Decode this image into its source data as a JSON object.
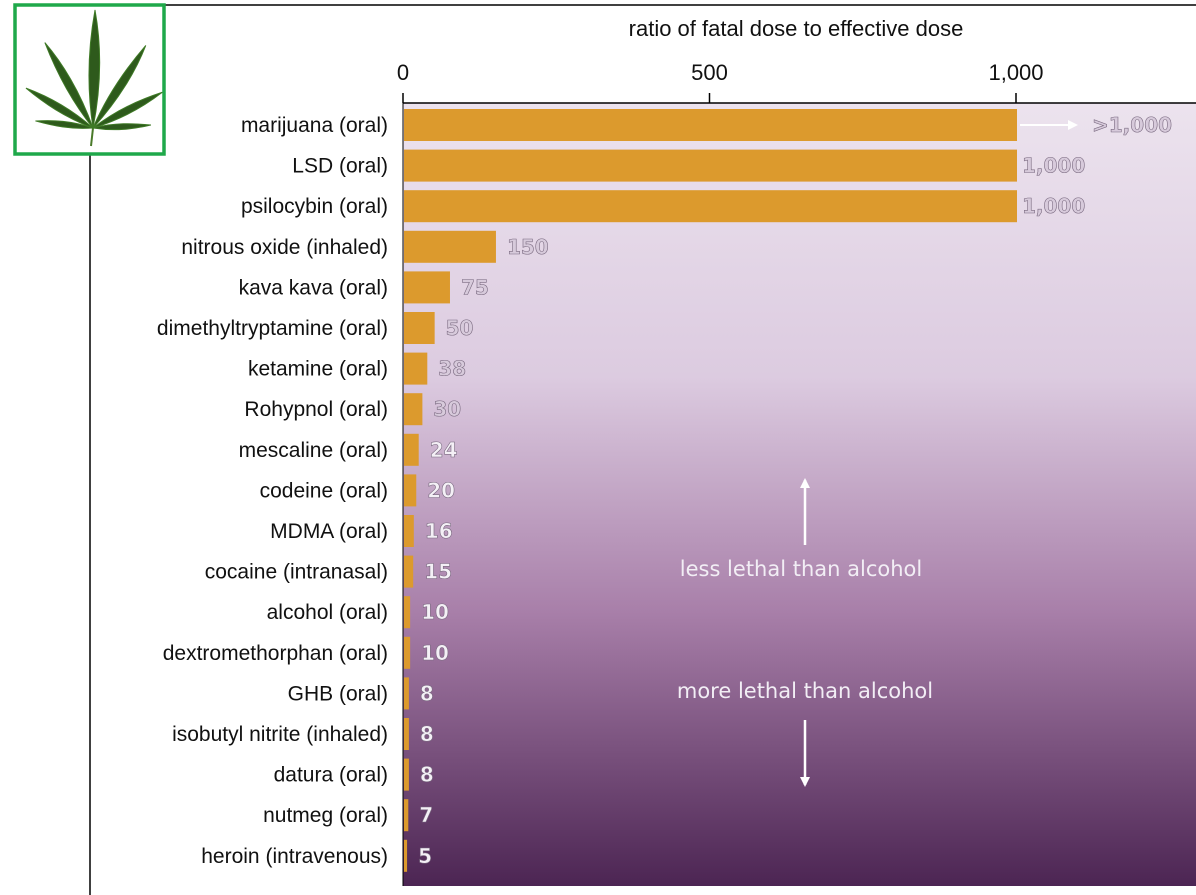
{
  "chart_data": {
    "type": "bar",
    "orientation": "horizontal",
    "xlabel": "ratio of fatal dose to effective dose",
    "xlim": [
      0,
      1000
    ],
    "xticks": [
      0,
      500,
      1000
    ],
    "xtick_labels": [
      "0",
      "500",
      "1,000"
    ],
    "categories": [
      "marijuana (oral)",
      "LSD (oral)",
      "psilocybin (oral)",
      "nitrous oxide (inhaled)",
      "kava kava (oral)",
      "dimethyltryptamine (oral)",
      "ketamine (oral)",
      "Rohypnol (oral)",
      "mescaline (oral)",
      "codeine (oral)",
      "MDMA (oral)",
      "cocaine (intranasal)",
      "alcohol (oral)",
      "dextromethorphan (oral)",
      "GHB (oral)",
      "isobutyl nitrite (inhaled)",
      "datura (oral)",
      "nutmeg (oral)",
      "heroin (intravenous)"
    ],
    "values": [
      1000,
      1000,
      1000,
      150,
      75,
      50,
      38,
      30,
      24,
      20,
      16,
      15,
      10,
      10,
      8,
      8,
      8,
      7,
      5
    ],
    "value_labels": [
      ">1,000",
      "1,000",
      "1,000",
      "150",
      "75",
      "50",
      "38",
      "30",
      "24",
      "20",
      "16",
      "15",
      "10",
      "10",
      "8",
      "8",
      "8",
      "7",
      "5"
    ],
    "annotations": {
      "upper": "less lethal than alcohol",
      "lower": "more lethal than alcohol"
    },
    "colors": {
      "bar": "#dc9a2d",
      "background_top": "#e6dbe8",
      "background_bottom": "#512955"
    }
  },
  "logo": {
    "icon": "cannabis-leaf-icon",
    "border_color": "#1fa84a"
  }
}
